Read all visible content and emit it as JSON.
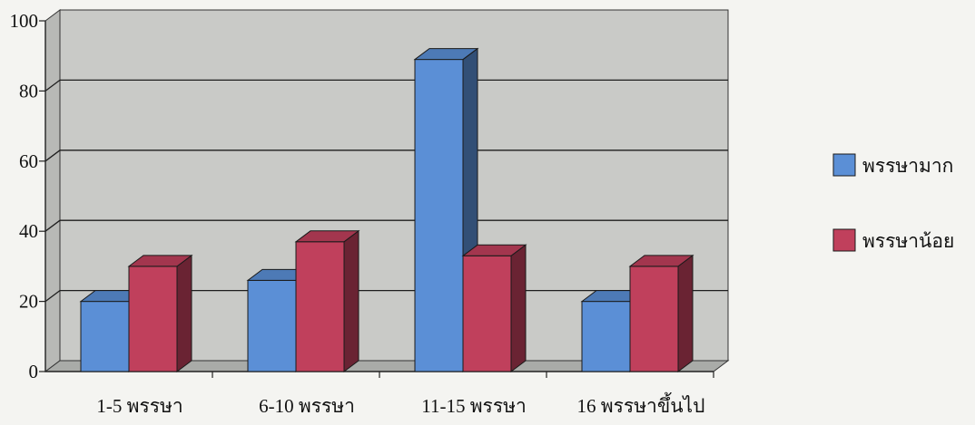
{
  "chart_data": {
    "type": "bar",
    "categories": [
      "1-5 พรรษา",
      "6-10 พรรษา",
      "11-15 พรรษา",
      "16 พรรษาขึ้นไป"
    ],
    "series": [
      {
        "name": "พรรษามาก",
        "values": [
          20,
          26,
          89,
          20
        ],
        "color": "#5b8fd6"
      },
      {
        "name": "พรรษาน้อย",
        "values": [
          30,
          37,
          33,
          30
        ],
        "color": "#c0405c"
      }
    ],
    "ylim": [
      0,
      100
    ],
    "yticks": [
      "0",
      "20",
      "40",
      "60",
      "80",
      "100"
    ],
    "grid": true,
    "legend_position": "right",
    "colors": {
      "wall": "#c9cac7",
      "floor": "#a9aba8",
      "grid": "#1e1e1e"
    }
  }
}
